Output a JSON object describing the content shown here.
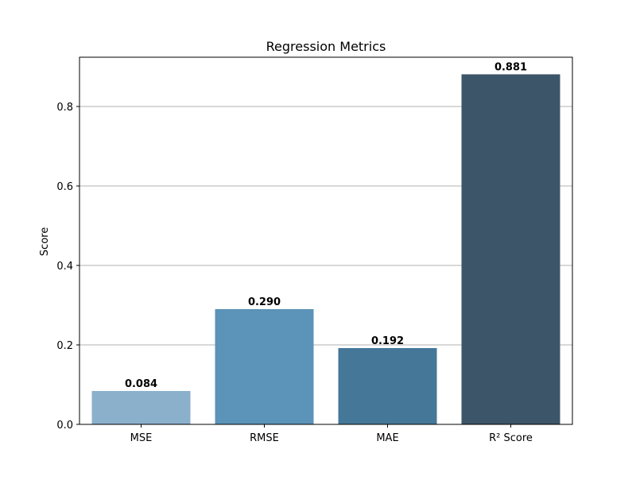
{
  "chart_data": {
    "type": "bar",
    "title": "Regression Metrics",
    "xlabel": "",
    "ylabel": "Score",
    "categories": [
      "MSE",
      "RMSE",
      "MAE",
      "R² Score"
    ],
    "values": [
      0.084,
      0.29,
      0.192,
      0.881
    ],
    "value_labels": [
      "0.084",
      "0.290",
      "0.192",
      "0.881"
    ],
    "colors": [
      "#8ab0cc",
      "#5b93b9",
      "#457799",
      "#3d5568"
    ],
    "ylim": [
      0,
      0.924
    ],
    "yticks": [
      0.0,
      0.2,
      0.4,
      0.6,
      0.8
    ],
    "ytick_labels": [
      "0.0",
      "0.2",
      "0.4",
      "0.6",
      "0.8"
    ],
    "grid": "y",
    "legend": "none"
  }
}
